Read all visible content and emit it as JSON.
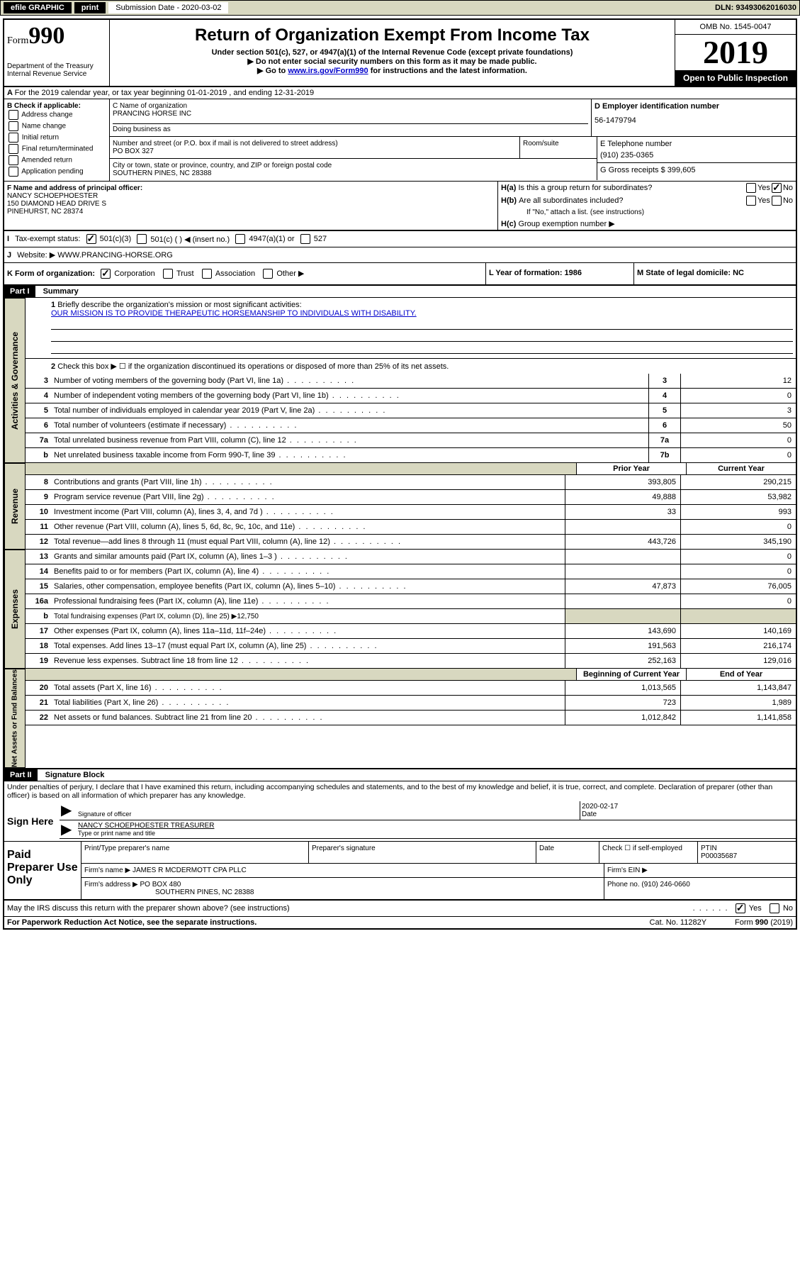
{
  "top": {
    "efile": "efile GRAPHIC",
    "print": "print",
    "sub_date_label": "Submission Date - 2020-03-02",
    "dln": "DLN: 93493062016030"
  },
  "header": {
    "form_prefix": "Form",
    "form_number": "990",
    "title": "Return of Organization Exempt From Income Tax",
    "sub1": "Under section 501(c), 527, or 4947(a)(1) of the Internal Revenue Code (except private foundations)",
    "sub2": "▶ Do not enter social security numbers on this form as it may be made public.",
    "sub3_prefix": "▶ Go to ",
    "sub3_link": "www.irs.gov/Form990",
    "sub3_suffix": " for instructions and the latest information.",
    "dept": "Department of the Treasury",
    "irs": "Internal Revenue Service",
    "omb": "OMB No. 1545-0047",
    "year": "2019",
    "open": "Open to Public Inspection"
  },
  "a": {
    "text": "For the 2019 calendar year, or tax year beginning 01-01-2019   , and ending 12-31-2019"
  },
  "b": {
    "title": "B Check if applicable:",
    "opts": [
      "Address change",
      "Name change",
      "Initial return",
      "Final return/terminated",
      "Amended return",
      "Application pending"
    ]
  },
  "c": {
    "label": "C Name of organization",
    "name": "PRANCING HORSE INC",
    "dba_label": "Doing business as",
    "street_label": "Number and street (or P.O. box if mail is not delivered to street address)",
    "street": "PO BOX 327",
    "room_label": "Room/suite",
    "city_label": "City or town, state or province, country, and ZIP or foreign postal code",
    "city": "SOUTHERN PINES, NC  28388"
  },
  "d": {
    "label": "D Employer identification number",
    "value": "56-1479794"
  },
  "e": {
    "label": "E Telephone number",
    "value": "(910) 235-0365"
  },
  "g": {
    "label": "G Gross receipts $ 399,605"
  },
  "f": {
    "label": "F Name and address of principal officer:",
    "name": "NANCY SCHOEPHOESTER",
    "street": "150 DIAMOND HEAD DRIVE S",
    "city": "PINEHURST, NC  28374"
  },
  "h": {
    "a": "Is this a group return for subordinates?",
    "b": "Are all subordinates included?",
    "b_note": "If \"No,\" attach a list. (see instructions)",
    "c": "Group exemption number ▶"
  },
  "i": {
    "label": "Tax-exempt status:",
    "opts": [
      "501(c)(3)",
      "501(c) (  ) ◀ (insert no.)",
      "4947(a)(1) or",
      "527"
    ]
  },
  "j": {
    "label": "Website: ▶",
    "value": "WWW.PRANCING-HORSE.ORG"
  },
  "k": {
    "label": "K Form of organization:",
    "opts": [
      "Corporation",
      "Trust",
      "Association",
      "Other ▶"
    ]
  },
  "l": {
    "label": "L Year of formation: 1986"
  },
  "m": {
    "label": "M State of legal domicile: NC"
  },
  "part1": {
    "header": "Part I",
    "title": "Summary",
    "q1": "Briefly describe the organization's mission or most significant activities:",
    "mission": "OUR MISSION IS TO PROVIDE THERAPEUTIC HORSEMANSHIP TO INDIVIDUALS WITH DISABILITY.",
    "q2": "Check this box ▶ ☐  if the organization discontinued its operations or disposed of more than 25% of its net assets.",
    "lines_gov": [
      {
        "n": "3",
        "d": "Number of voting members of the governing body (Part VI, line 1a)",
        "c": "3",
        "v": "12"
      },
      {
        "n": "4",
        "d": "Number of independent voting members of the governing body (Part VI, line 1b)",
        "c": "4",
        "v": "0"
      },
      {
        "n": "5",
        "d": "Total number of individuals employed in calendar year 2019 (Part V, line 2a)",
        "c": "5",
        "v": "3"
      },
      {
        "n": "6",
        "d": "Total number of volunteers (estimate if necessary)",
        "c": "6",
        "v": "50"
      },
      {
        "n": "7a",
        "d": "Total unrelated business revenue from Part VIII, column (C), line 12",
        "c": "7a",
        "v": "0"
      },
      {
        "n": "b",
        "d": "Net unrelated business taxable income from Form 990-T, line 39",
        "c": "7b",
        "v": "0"
      }
    ],
    "prior": "Prior Year",
    "current": "Current Year",
    "lines_rev": [
      {
        "n": "8",
        "d": "Contributions and grants (Part VIII, line 1h)",
        "p": "393,805",
        "c": "290,215"
      },
      {
        "n": "9",
        "d": "Program service revenue (Part VIII, line 2g)",
        "p": "49,888",
        "c": "53,982"
      },
      {
        "n": "10",
        "d": "Investment income (Part VIII, column (A), lines 3, 4, and 7d )",
        "p": "33",
        "c": "993"
      },
      {
        "n": "11",
        "d": "Other revenue (Part VIII, column (A), lines 5, 6d, 8c, 9c, 10c, and 11e)",
        "p": "",
        "c": "0"
      },
      {
        "n": "12",
        "d": "Total revenue—add lines 8 through 11 (must equal Part VIII, column (A), line 12)",
        "p": "443,726",
        "c": "345,190"
      }
    ],
    "lines_exp": [
      {
        "n": "13",
        "d": "Grants and similar amounts paid (Part IX, column (A), lines 1–3 )",
        "p": "",
        "c": "0"
      },
      {
        "n": "14",
        "d": "Benefits paid to or for members (Part IX, column (A), line 4)",
        "p": "",
        "c": "0"
      },
      {
        "n": "15",
        "d": "Salaries, other compensation, employee benefits (Part IX, column (A), lines 5–10)",
        "p": "47,873",
        "c": "76,005"
      },
      {
        "n": "16a",
        "d": "Professional fundraising fees (Part IX, column (A), line 11e)",
        "p": "",
        "c": "0"
      },
      {
        "n": "b",
        "d": "Total fundraising expenses (Part IX, column (D), line 25) ▶12,750",
        "p": "",
        "c": ""
      },
      {
        "n": "17",
        "d": "Other expenses (Part IX, column (A), lines 11a–11d, 11f–24e)",
        "p": "143,690",
        "c": "140,169"
      },
      {
        "n": "18",
        "d": "Total expenses. Add lines 13–17 (must equal Part IX, column (A), line 25)",
        "p": "191,563",
        "c": "216,174"
      },
      {
        "n": "19",
        "d": "Revenue less expenses. Subtract line 18 from line 12",
        "p": "252,163",
        "c": "129,016"
      }
    ],
    "beg": "Beginning of Current Year",
    "end": "End of Year",
    "lines_net": [
      {
        "n": "20",
        "d": "Total assets (Part X, line 16)",
        "p": "1,013,565",
        "c": "1,143,847"
      },
      {
        "n": "21",
        "d": "Total liabilities (Part X, line 26)",
        "p": "723",
        "c": "1,989"
      },
      {
        "n": "22",
        "d": "Net assets or fund balances. Subtract line 21 from line 20",
        "p": "1,012,842",
        "c": "1,141,858"
      }
    ]
  },
  "vtabs": {
    "gov": "Activities & Governance",
    "rev": "Revenue",
    "exp": "Expenses",
    "net": "Net Assets or Fund Balances"
  },
  "part2": {
    "header": "Part II",
    "title": "Signature Block",
    "decl": "Under penalties of perjury, I declare that I have examined this return, including accompanying schedules and statements, and to the best of my knowledge and belief, it is true, correct, and complete. Declaration of preparer (other than officer) is based on all information of which preparer has any knowledge."
  },
  "sign": {
    "here": "Sign Here",
    "sig_label": "Signature of officer",
    "date": "2020-02-17",
    "date_label": "Date",
    "name": "NANCY SCHOEPHOESTER  TREASURER",
    "name_label": "Type or print name and title"
  },
  "paid": {
    "title": "Paid Preparer Use Only",
    "print_label": "Print/Type preparer's name",
    "sig_label": "Preparer's signature",
    "date_label": "Date",
    "check_label": "Check ☐ if self-employed",
    "ptin_label": "PTIN",
    "ptin": "P00035687",
    "firm_name_label": "Firm's name    ▶",
    "firm_name": "JAMES R MCDERMOTT CPA PLLC",
    "firm_ein_label": "Firm's EIN ▶",
    "firm_addr_label": "Firm's address ▶",
    "firm_addr1": "PO BOX 480",
    "firm_addr2": "SOUTHERN PINES, NC  28388",
    "phone_label": "Phone no. (910) 246-0660"
  },
  "footer": {
    "discuss": "May the IRS discuss this return with the preparer shown above? (see instructions)",
    "paperwork": "For Paperwork Reduction Act Notice, see the separate instructions.",
    "cat": "Cat. No. 11282Y",
    "form": "Form 990 (2019)"
  },
  "yes": "Yes",
  "no": "No"
}
